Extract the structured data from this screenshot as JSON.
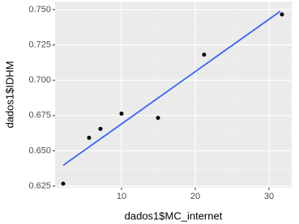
{
  "chart_data": {
    "type": "scatter",
    "x_label": "dados1$MC_internet",
    "y_label": "dados1$IDHM",
    "x": [
      2.09,
      5.6,
      7.14,
      10.0,
      14.95,
      21.2,
      31.76
    ],
    "values": [
      0.6267,
      0.6592,
      0.6655,
      0.6763,
      0.6733,
      0.7181,
      0.7466
    ],
    "color": "#000000",
    "trend": {
      "x": [
        2.09,
        31.54
      ],
      "values": [
        0.6397,
        0.7489
      ],
      "color": "#3366ff"
    },
    "xlim": [
      0.99,
      33.08
    ],
    "xticks": [
      10,
      20,
      30
    ],
    "ylim": [
      0.6239,
      0.7557
    ],
    "yticks": [
      0.625,
      {
        "value": 0.65,
        "label": "0.650"
      },
      0.675,
      {
        "value": 0.7,
        "label": "0.700"
      },
      0.725,
      {
        "value": 0.75,
        "label": "0.750"
      }
    ],
    "grid": true
  }
}
